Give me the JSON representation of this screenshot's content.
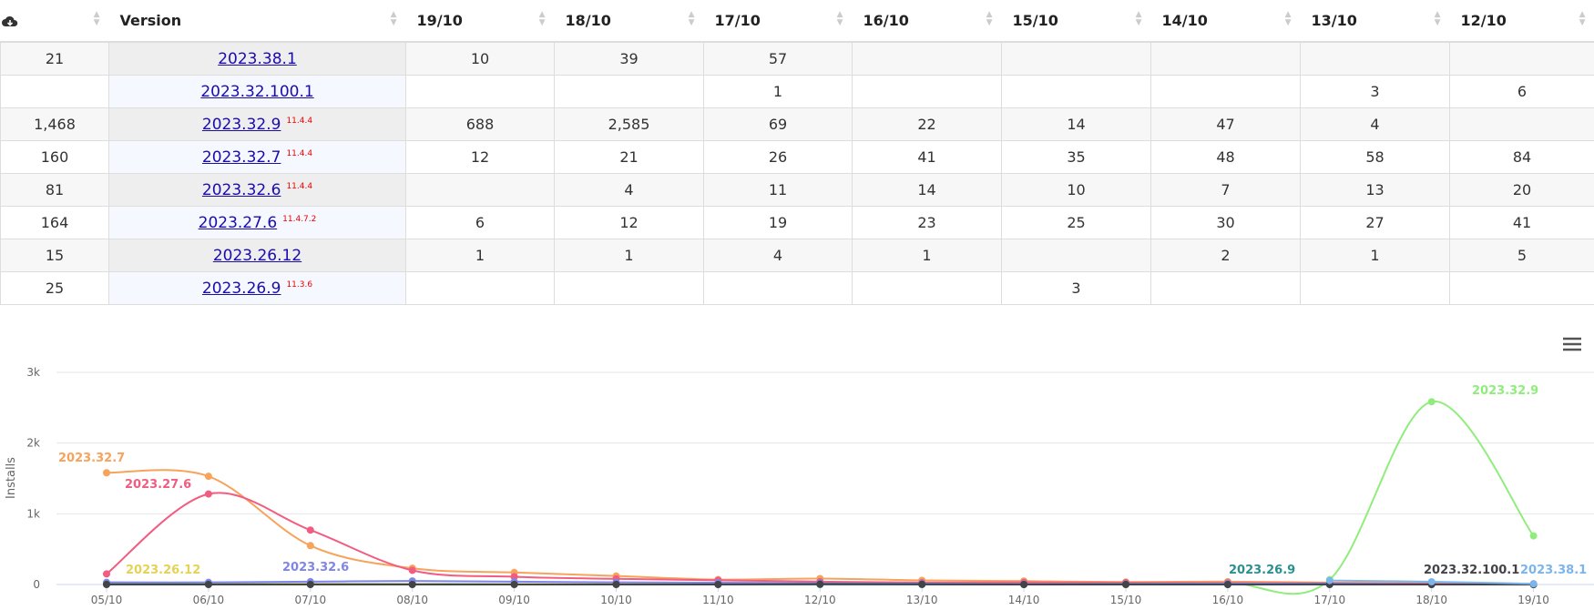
{
  "table": {
    "headers": [
      "Version",
      "19/10",
      "18/10",
      "17/10",
      "16/10",
      "15/10",
      "14/10",
      "13/10",
      "12/10"
    ],
    "rows": [
      {
        "total": "21",
        "version": "2023.38.1",
        "cells": [
          "10",
          "39",
          "57",
          null,
          null,
          null,
          null,
          null
        ]
      },
      {
        "total": null,
        "version": "2023.32.100.1",
        "cells": [
          null,
          null,
          "1",
          null,
          null,
          null,
          "3",
          "6"
        ]
      },
      {
        "total": "1,468",
        "version": "2023.32.9",
        "os": "11.4.4",
        "cells": [
          "688",
          "2,585",
          "69",
          "22",
          "14",
          "47",
          "4",
          null
        ]
      },
      {
        "total": "160",
        "version": "2023.32.7",
        "os": "11.4.4",
        "cells": [
          "12",
          "21",
          "26",
          "41",
          "35",
          "48",
          "58",
          "84"
        ]
      },
      {
        "total": "81",
        "version": "2023.32.6",
        "os": "11.4.4",
        "cells": [
          null,
          "4",
          "11",
          "14",
          "10",
          "7",
          "13",
          "20"
        ]
      },
      {
        "total": "164",
        "version": "2023.27.6",
        "os": "11.4.7.2",
        "cells": [
          "6",
          "12",
          "19",
          "23",
          "25",
          "30",
          "27",
          "41"
        ]
      },
      {
        "total": "15",
        "version": "2023.26.12",
        "cells": [
          "1",
          "1",
          "4",
          "1",
          null,
          "2",
          "1",
          "5"
        ]
      },
      {
        "total": "25",
        "version": "2023.26.9",
        "os": "11.3.6",
        "cells": [
          null,
          null,
          null,
          null,
          "3",
          null,
          null,
          null
        ]
      }
    ]
  },
  "chart_data": {
    "type": "line",
    "y_label": "Installs",
    "categories": [
      "05/10",
      "06/10",
      "07/10",
      "08/10",
      "09/10",
      "10/10",
      "11/10",
      "12/10",
      "13/10",
      "14/10",
      "15/10",
      "16/10",
      "17/10",
      "18/10",
      "19/10"
    ],
    "ylim": [
      0,
      3000
    ],
    "yticks": [
      {
        "value": 0,
        "label": "0"
      },
      {
        "value": 1000,
        "label": "1k"
      },
      {
        "value": 2000,
        "label": "2k"
      },
      {
        "value": 3000,
        "label": "3k"
      }
    ],
    "grid": true,
    "series": [
      {
        "name": "2023.32.9",
        "color": "#90ed7d",
        "values": [
          null,
          null,
          null,
          null,
          null,
          null,
          null,
          null,
          4,
          47,
          14,
          22,
          69,
          2585,
          688
        ]
      },
      {
        "name": "2023.32.7",
        "color": "#f7a35c",
        "values": [
          1580,
          1530,
          550,
          230,
          170,
          120,
          70,
          84,
          58,
          48,
          35,
          41,
          26,
          21,
          12
        ]
      },
      {
        "name": "2023.27.6",
        "color": "#f15c80",
        "values": [
          150,
          1280,
          770,
          200,
          110,
          80,
          60,
          41,
          27,
          30,
          25,
          23,
          19,
          12,
          6
        ]
      },
      {
        "name": "2023.26.12",
        "color": "#e4d354",
        "values": [
          15,
          12,
          10,
          8,
          6,
          5,
          4,
          5,
          1,
          2,
          0,
          1,
          4,
          1,
          1
        ]
      },
      {
        "name": "2023.32.6",
        "color": "#8085e9",
        "values": [
          30,
          30,
          40,
          50,
          40,
          30,
          25,
          20,
          13,
          7,
          10,
          14,
          11,
          4,
          0
        ]
      },
      {
        "name": "2023.26.9",
        "color": "#2b908f",
        "values": [
          5,
          4,
          3,
          3,
          2,
          2,
          1,
          0,
          0,
          0,
          3,
          0,
          0,
          0,
          0
        ]
      },
      {
        "name": "2023.32.100.1",
        "color": "#434348",
        "values": [
          0,
          0,
          0,
          0,
          0,
          0,
          0,
          6,
          3,
          0,
          0,
          0,
          1,
          0,
          0
        ]
      },
      {
        "name": "2023.38.1",
        "color": "#7cb5ec",
        "values": [
          null,
          null,
          null,
          null,
          null,
          null,
          null,
          null,
          null,
          null,
          null,
          null,
          57,
          39,
          10
        ]
      }
    ]
  }
}
